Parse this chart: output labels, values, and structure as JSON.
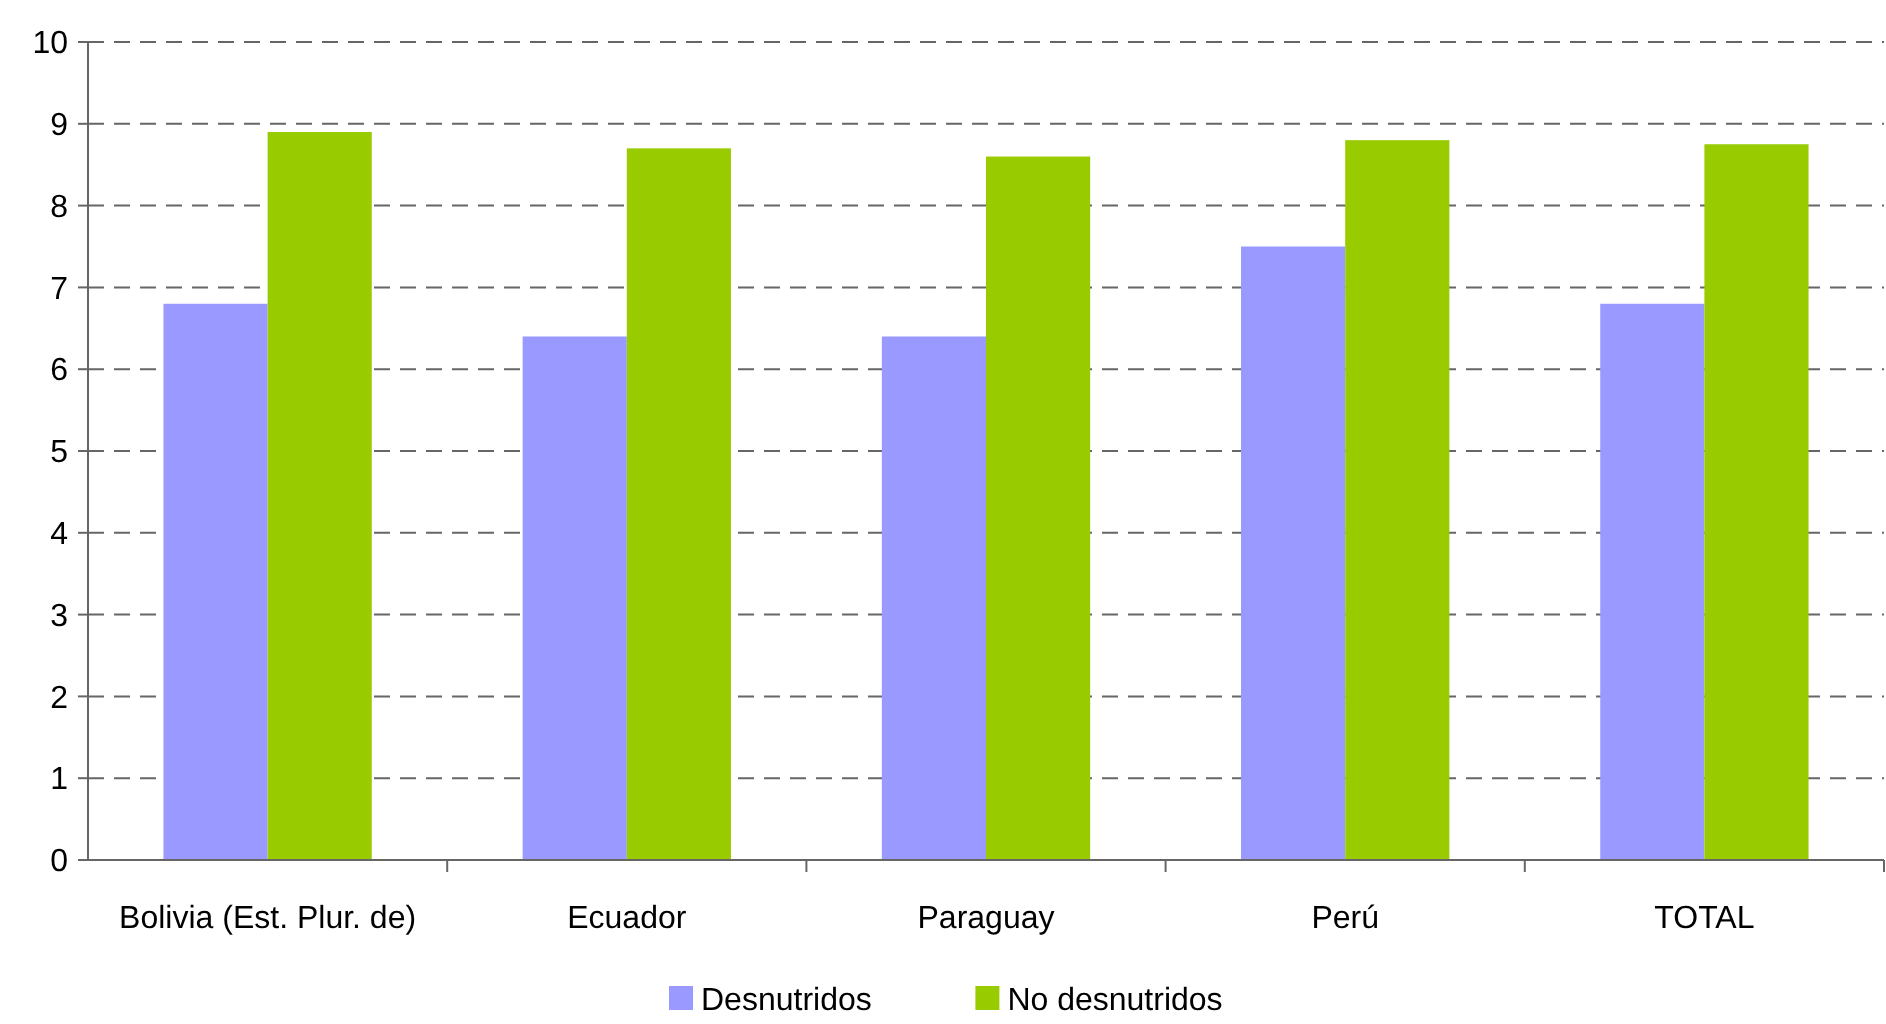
{
  "chart_data": {
    "type": "bar",
    "categories": [
      "Bolivia (Est. Plur. de)",
      "Ecuador",
      "Paraguay",
      "Perú",
      "TOTAL"
    ],
    "series": [
      {
        "name": "Desnutridos",
        "color": "#9999ff",
        "values": [
          6.8,
          6.4,
          6.4,
          7.5,
          6.8
        ]
      },
      {
        "name": "No desnutridos",
        "color": "#99cc00",
        "values": [
          8.9,
          8.7,
          8.6,
          8.8,
          8.75
        ]
      }
    ],
    "ylim": [
      0,
      10
    ],
    "yticks": [
      0,
      1,
      2,
      3,
      4,
      5,
      6,
      7,
      8,
      9,
      10
    ],
    "grid": "y",
    "legend": "bottom"
  }
}
